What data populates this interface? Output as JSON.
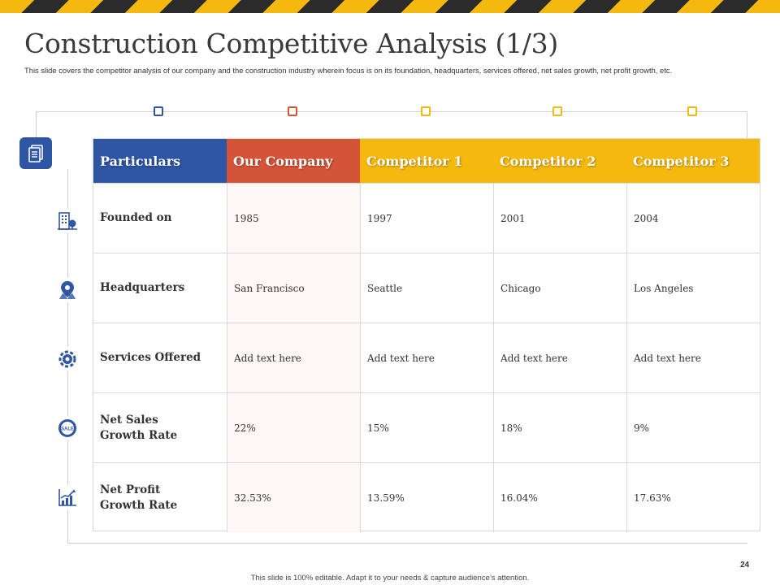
{
  "slide": {
    "title": "Construction Competitive Analysis (1/3)",
    "subtitle": "This slide covers the competitor analysis of our company and the construction industry wherein focus is on its foundation, headquarters, services offered, net sales growth, net profit growth, etc.",
    "page_number": "24",
    "footer": "This slide is 100% editable. Adapt it to your needs & capture audience’s attention."
  },
  "colors": {
    "blue": "#2f55a5",
    "orange": "#d4543a",
    "yellow": "#f5b80f",
    "hazard_dark": "#2b2b2b"
  },
  "icons": [
    "document-icon",
    "building-icon",
    "location-pin-icon",
    "gear-icon",
    "sale-badge-icon",
    "growth-chart-icon"
  ],
  "table": {
    "headers": [
      "Particulars",
      "Our Company",
      "Competitor 1",
      "Competitor 2",
      "Competitor 3"
    ],
    "rows": [
      {
        "label": "Founded on",
        "values": [
          "1985",
          "1997",
          "2001",
          "2004"
        ]
      },
      {
        "label": "Headquarters",
        "values": [
          "San Francisco",
          "Seattle",
          "Chicago",
          "Los Angeles"
        ]
      },
      {
        "label": "Services Offered",
        "values": [
          "Add text here",
          "Add text here",
          "Add text here",
          "Add text here"
        ]
      },
      {
        "label": "Net Sales Growth Rate",
        "values": [
          "22%",
          "15%",
          "18%",
          "9%"
        ]
      },
      {
        "label": "Net Profit Growth Rate",
        "values": [
          "32.53%",
          "13.59%",
          "16.04%",
          "17.63%"
        ]
      }
    ]
  }
}
